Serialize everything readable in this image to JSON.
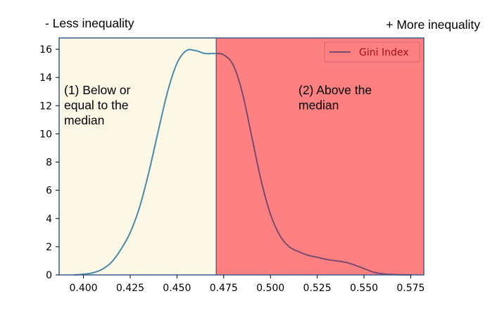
{
  "chart_data": {
    "type": "line",
    "header_left": "- Less inequality",
    "header_right": "+ More inequality",
    "xlim": [
      0.387,
      0.582
    ],
    "ylim": [
      0,
      16.8
    ],
    "x_ticks": [
      "0.400",
      "0.425",
      "0.450",
      "0.475",
      "0.500",
      "0.525",
      "0.550",
      "0.575"
    ],
    "x_tick_values": [
      0.4,
      0.425,
      0.45,
      0.475,
      0.5,
      0.525,
      0.55,
      0.575
    ],
    "y_ticks": [
      "0",
      "2",
      "4",
      "6",
      "8",
      "10",
      "12",
      "14",
      "16"
    ],
    "y_tick_values": [
      0,
      2,
      4,
      6,
      8,
      10,
      12,
      14,
      16
    ],
    "median": 0.471,
    "regions": [
      {
        "label_lines": [
          "(1) Below or",
          "equal to the",
          "median"
        ],
        "color": "#fdf8e6"
      },
      {
        "label_lines": [
          "(2) Above the",
          "median"
        ],
        "color": "#ff8080"
      }
    ],
    "legend": {
      "position": "upper right",
      "entries": [
        "Gini Index"
      ]
    },
    "grid": false,
    "series": [
      {
        "name": "Gini Index",
        "color_below": "#4a8aab",
        "color_above": "#7a4a6e",
        "x": [
          0.395,
          0.4,
          0.405,
          0.41,
          0.415,
          0.42,
          0.425,
          0.43,
          0.435,
          0.44,
          0.445,
          0.45,
          0.455,
          0.46,
          0.465,
          0.47,
          0.471,
          0.475,
          0.48,
          0.485,
          0.49,
          0.495,
          0.5,
          0.505,
          0.51,
          0.515,
          0.52,
          0.525,
          0.53,
          0.535,
          0.54,
          0.545,
          0.55,
          0.555,
          0.56,
          0.565,
          0.57,
          0.575
        ],
        "y": [
          0.0,
          0.05,
          0.15,
          0.4,
          0.9,
          1.8,
          3.0,
          4.8,
          7.3,
          10.2,
          13.0,
          15.0,
          15.9,
          15.9,
          15.7,
          15.7,
          15.7,
          15.6,
          14.9,
          12.9,
          9.8,
          6.7,
          4.3,
          2.8,
          2.0,
          1.65,
          1.4,
          1.25,
          1.1,
          1.0,
          0.9,
          0.7,
          0.45,
          0.2,
          0.08,
          0.03,
          0.01,
          0.0
        ]
      }
    ]
  }
}
